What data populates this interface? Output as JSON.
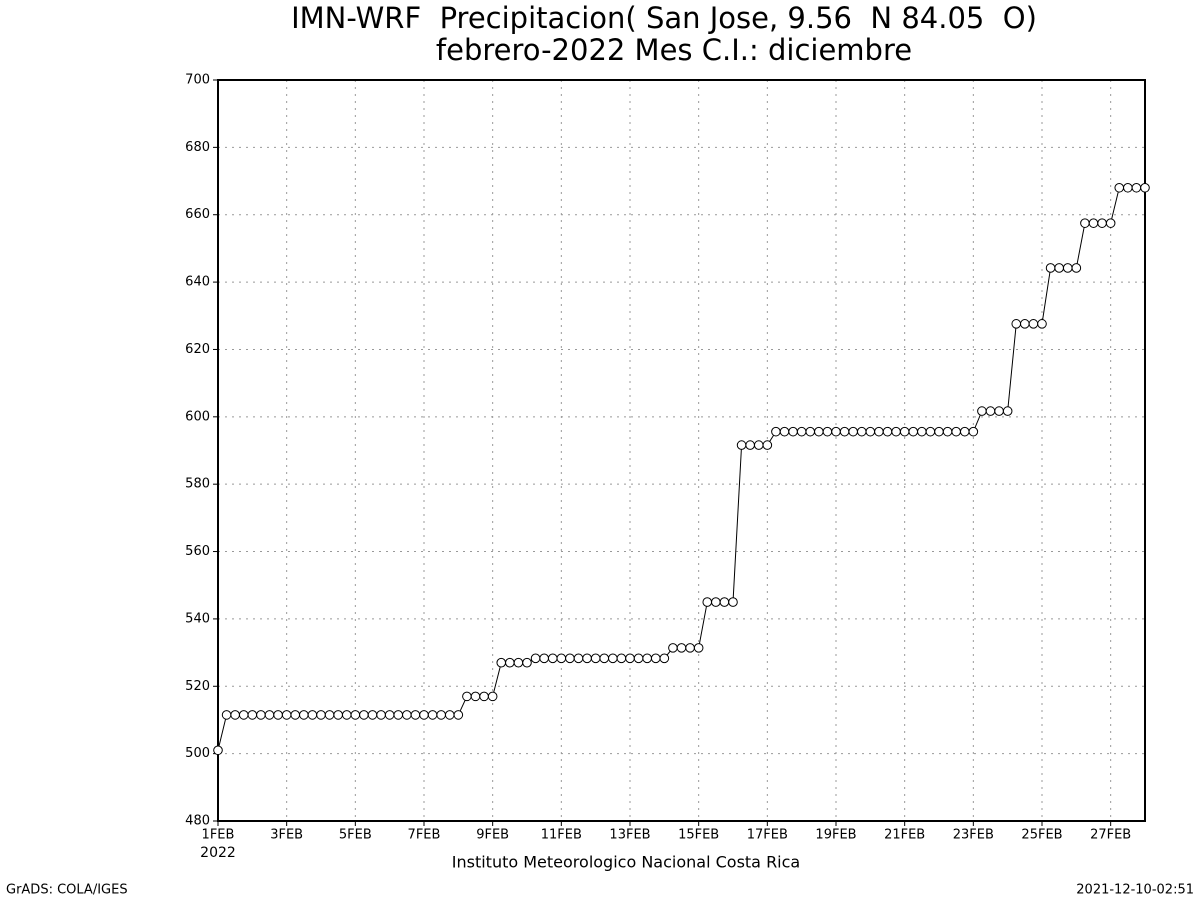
{
  "chart_data": {
    "type": "line",
    "title": "IMN-WRF  Precipitacion( San Jose, 9.56  N 84.05  O)",
    "subtitle": "febrero-2022 Mes C.I.: diciembre",
    "x_year_label": "2022",
    "footer": "Instituto Meteorologico Nacional Costa Rica",
    "credit": "GrADS: COLA/IGES",
    "timestamp": "2021-12-10-02:51",
    "x": [
      1,
      1.25,
      1.5,
      1.75,
      2,
      2.25,
      2.5,
      2.75,
      3,
      3.25,
      3.5,
      3.75,
      4,
      4.25,
      4.5,
      4.75,
      5,
      5.25,
      5.5,
      5.75,
      6,
      6.25,
      6.5,
      6.75,
      7,
      7.25,
      7.5,
      7.75,
      8,
      8.25,
      8.5,
      8.75,
      9,
      9.25,
      9.5,
      9.75,
      10,
      10.25,
      10.5,
      10.75,
      11,
      11.25,
      11.5,
      11.75,
      12,
      12.25,
      12.5,
      12.75,
      13,
      13.25,
      13.5,
      13.75,
      14,
      14.25,
      14.5,
      14.75,
      15,
      15.25,
      15.5,
      15.75,
      16,
      16.25,
      16.5,
      16.75,
      17,
      17.25,
      17.5,
      17.75,
      18,
      18.25,
      18.5,
      18.75,
      19,
      19.25,
      19.5,
      19.75,
      20,
      20.25,
      20.5,
      20.75,
      21,
      21.25,
      21.5,
      21.75,
      22,
      22.25,
      22.5,
      22.75,
      23,
      23.25,
      23.5,
      23.75,
      24,
      24.25,
      24.5,
      24.75,
      25,
      25.25,
      25.5,
      25.75,
      26,
      26.25,
      26.5,
      26.75,
      27,
      27.25,
      27.5,
      27.75,
      28
    ],
    "values": [
      501,
      511.5,
      511.5,
      511.5,
      511.5,
      511.5,
      511.5,
      511.5,
      511.5,
      511.5,
      511.5,
      511.5,
      511.5,
      511.5,
      511.5,
      511.5,
      511.5,
      511.5,
      511.5,
      511.5,
      511.5,
      511.5,
      511.5,
      511.5,
      511.5,
      511.5,
      511.5,
      511.5,
      511.5,
      517,
      517,
      517,
      517,
      527,
      527,
      527,
      527,
      528.3,
      528.3,
      528.3,
      528.3,
      528.3,
      528.3,
      528.3,
      528.3,
      528.3,
      528.3,
      528.3,
      528.3,
      528.3,
      528.3,
      528.3,
      528.3,
      531.4,
      531.4,
      531.4,
      531.4,
      545,
      545,
      545,
      545,
      591.6,
      591.6,
      591.6,
      591.6,
      595.6,
      595.6,
      595.6,
      595.6,
      595.6,
      595.6,
      595.6,
      595.6,
      595.6,
      595.6,
      595.6,
      595.6,
      595.6,
      595.6,
      595.6,
      595.6,
      595.6,
      595.6,
      595.6,
      595.6,
      595.6,
      595.6,
      595.6,
      595.6,
      601.7,
      601.7,
      601.7,
      601.7,
      627.6,
      627.6,
      627.6,
      627.6,
      644.2,
      644.2,
      644.2,
      644.2,
      657.5,
      657.5,
      657.5,
      657.5,
      668,
      668,
      668,
      668
    ],
    "color": "#000000",
    "marker_fill": "#ffffff",
    "xlim": [
      1,
      28
    ],
    "xticks": [
      {
        "value": 1,
        "label": "1FEB"
      },
      {
        "value": 3,
        "label": "3FEB"
      },
      {
        "value": 5,
        "label": "5FEB"
      },
      {
        "value": 7,
        "label": "7FEB"
      },
      {
        "value": 9,
        "label": "9FEB"
      },
      {
        "value": 11,
        "label": "11FEB"
      },
      {
        "value": 13,
        "label": "13FEB"
      },
      {
        "value": 15,
        "label": "15FEB"
      },
      {
        "value": 17,
        "label": "17FEB"
      },
      {
        "value": 19,
        "label": "19FEB"
      },
      {
        "value": 21,
        "label": "21FEB"
      },
      {
        "value": 23,
        "label": "23FEB"
      },
      {
        "value": 25,
        "label": "25FEB"
      },
      {
        "value": 27,
        "label": "27FEB"
      }
    ],
    "ylim": [
      480,
      700
    ],
    "yticks": [
      480,
      500,
      520,
      540,
      560,
      580,
      600,
      620,
      640,
      660,
      680,
      700
    ],
    "grid": true
  }
}
